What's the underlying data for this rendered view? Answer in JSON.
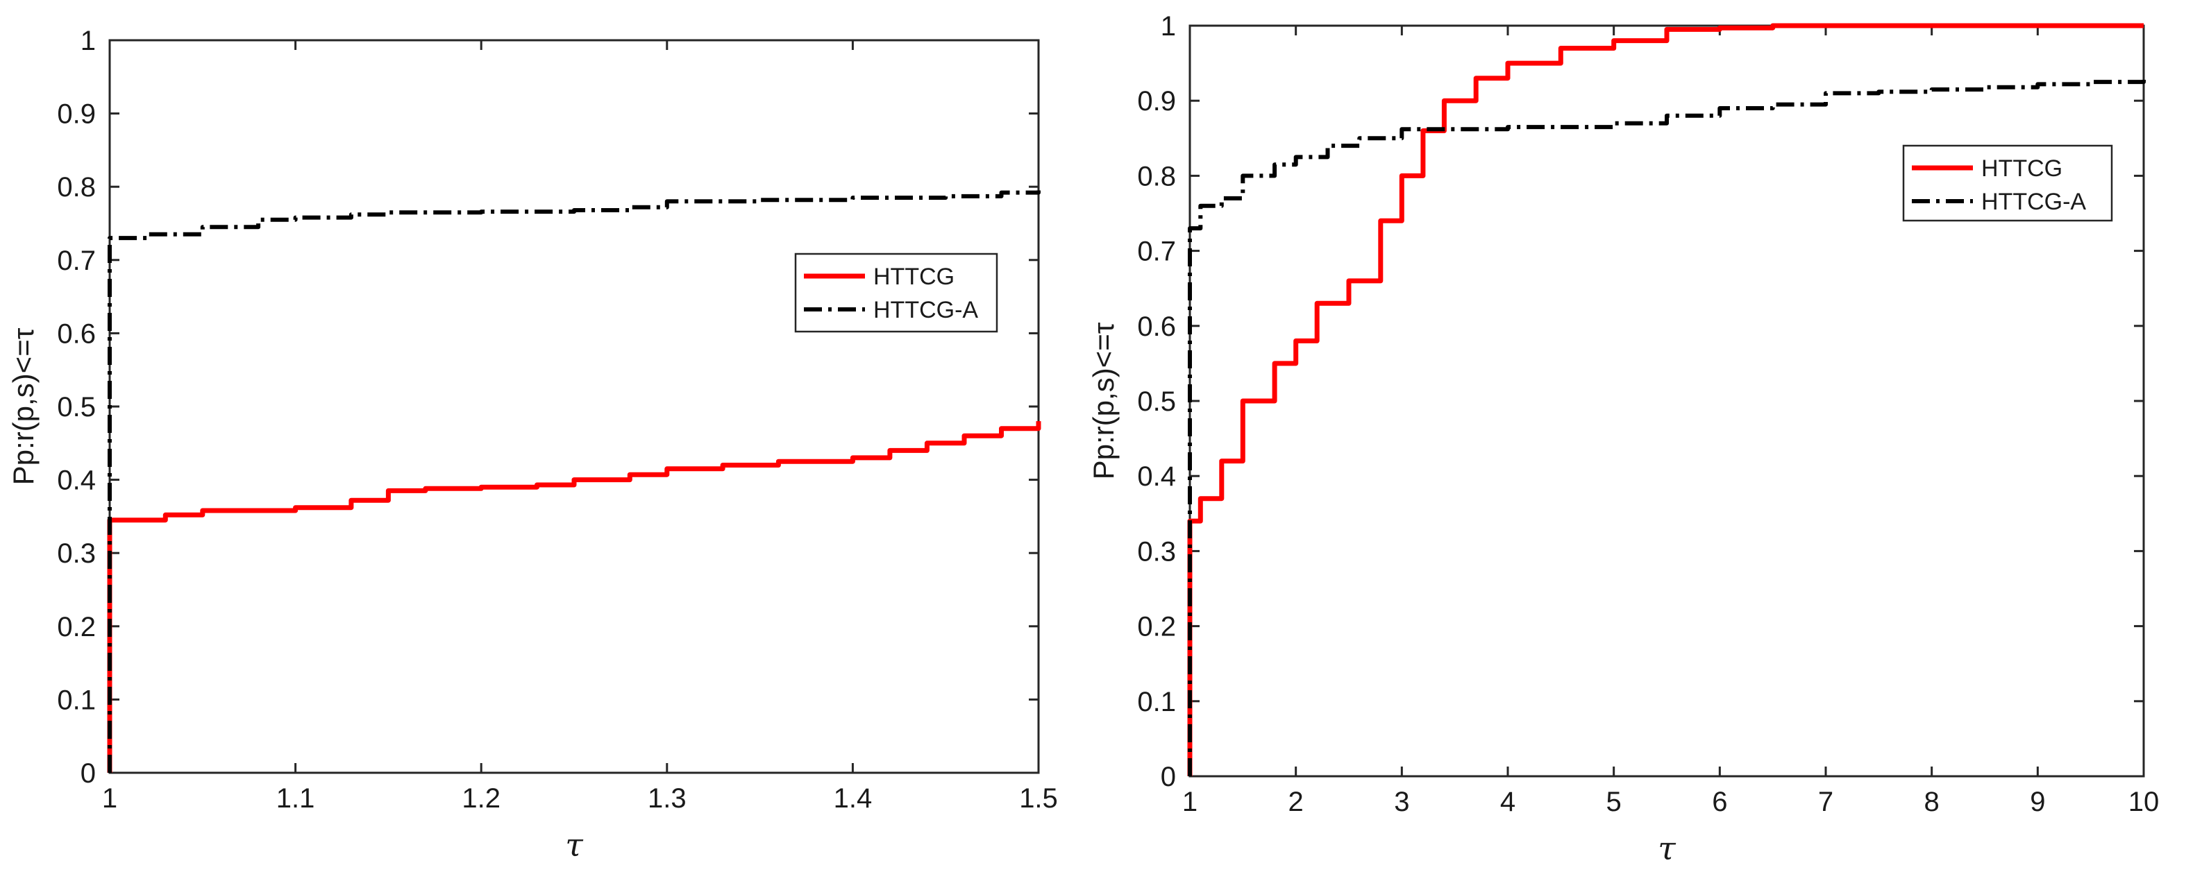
{
  "figure": {
    "background": "#ffffff",
    "panel_count": 2
  },
  "chart_data": [
    {
      "type": "line",
      "title": "",
      "xlabel": "τ",
      "ylabel": "Pp:r(p,s)<=τ",
      "xlim": [
        1,
        1.5
      ],
      "ylim": [
        0,
        1
      ],
      "xticks": [
        1,
        1.1,
        1.2,
        1.3,
        1.4,
        1.5
      ],
      "xtick_labels": [
        "1",
        "1.1",
        "1.2",
        "1.3",
        "1.4",
        "1.5"
      ],
      "yticks": [
        0,
        0.1,
        0.2,
        0.3,
        0.4,
        0.5,
        0.6,
        0.7,
        0.8,
        0.9,
        1
      ],
      "ytick_labels": [
        "0",
        "0.1",
        "0.2",
        "0.3",
        "0.4",
        "0.5",
        "0.6",
        "0.7",
        "0.8",
        "0.9",
        "1"
      ],
      "grid": false,
      "legend_position": "right-middle",
      "series": [
        {
          "name": "HTTCG",
          "color": "#ff0000",
          "dash": "solid",
          "x": [
            1.0,
            1.0,
            1.02,
            1.03,
            1.05,
            1.08,
            1.1,
            1.13,
            1.15,
            1.17,
            1.2,
            1.23,
            1.25,
            1.28,
            1.3,
            1.33,
            1.36,
            1.4,
            1.42,
            1.44,
            1.46,
            1.48,
            1.5,
            1.5
          ],
          "y": [
            0.0,
            0.345,
            0.345,
            0.352,
            0.358,
            0.358,
            0.362,
            0.372,
            0.385,
            0.388,
            0.39,
            0.393,
            0.4,
            0.407,
            0.415,
            0.42,
            0.425,
            0.43,
            0.44,
            0.45,
            0.46,
            0.47,
            0.475,
            0.48
          ]
        },
        {
          "name": "HTTCG-A",
          "color": "#000000",
          "dash": "dashdot",
          "x": [
            1.0,
            1.0,
            1.02,
            1.05,
            1.08,
            1.1,
            1.13,
            1.15,
            1.2,
            1.25,
            1.28,
            1.3,
            1.35,
            1.4,
            1.45,
            1.48,
            1.5
          ],
          "y": [
            0.0,
            0.73,
            0.735,
            0.745,
            0.755,
            0.758,
            0.762,
            0.765,
            0.766,
            0.768,
            0.772,
            0.78,
            0.782,
            0.785,
            0.787,
            0.792,
            0.795
          ]
        }
      ]
    },
    {
      "type": "line",
      "title": "",
      "xlabel": "τ",
      "ylabel": "Pp:r(p,s)<=τ",
      "xlim": [
        1,
        10
      ],
      "ylim": [
        0,
        1
      ],
      "xticks": [
        1,
        2,
        3,
        4,
        5,
        6,
        7,
        8,
        9,
        10
      ],
      "xtick_labels": [
        "1",
        "2",
        "3",
        "4",
        "5",
        "6",
        "7",
        "8",
        "9",
        "10"
      ],
      "yticks": [
        0,
        0.1,
        0.2,
        0.3,
        0.4,
        0.5,
        0.6,
        0.7,
        0.8,
        0.9,
        1
      ],
      "ytick_labels": [
        "0",
        "0.1",
        "0.2",
        "0.3",
        "0.4",
        "0.5",
        "0.6",
        "0.7",
        "0.8",
        "0.9",
        "1"
      ],
      "grid": false,
      "legend_position": "top-right",
      "series": [
        {
          "name": "HTTCG",
          "color": "#ff0000",
          "dash": "solid",
          "x": [
            1.0,
            1.0,
            1.1,
            1.3,
            1.5,
            1.8,
            2.0,
            2.2,
            2.5,
            2.8,
            3.0,
            3.2,
            3.4,
            3.7,
            4.0,
            4.5,
            5.0,
            5.5,
            6.0,
            6.5,
            7.0,
            8.0,
            10.0
          ],
          "y": [
            0.0,
            0.34,
            0.37,
            0.42,
            0.5,
            0.55,
            0.58,
            0.63,
            0.66,
            0.74,
            0.8,
            0.86,
            0.9,
            0.93,
            0.95,
            0.97,
            0.98,
            0.995,
            0.997,
            1.0,
            1.0,
            1.0,
            1.0
          ]
        },
        {
          "name": "HTTCG-A",
          "color": "#000000",
          "dash": "dashdot",
          "x": [
            1.0,
            1.0,
            1.1,
            1.3,
            1.5,
            1.8,
            2.0,
            2.3,
            2.6,
            3.0,
            3.5,
            4.0,
            5.0,
            5.5,
            6.0,
            6.5,
            7.0,
            7.5,
            8.0,
            8.5,
            9.0,
            9.5,
            10.0
          ],
          "y": [
            0.0,
            0.73,
            0.76,
            0.77,
            0.8,
            0.815,
            0.825,
            0.84,
            0.85,
            0.862,
            0.862,
            0.865,
            0.87,
            0.88,
            0.89,
            0.895,
            0.91,
            0.912,
            0.915,
            0.918,
            0.922,
            0.925,
            0.93
          ]
        }
      ]
    }
  ]
}
